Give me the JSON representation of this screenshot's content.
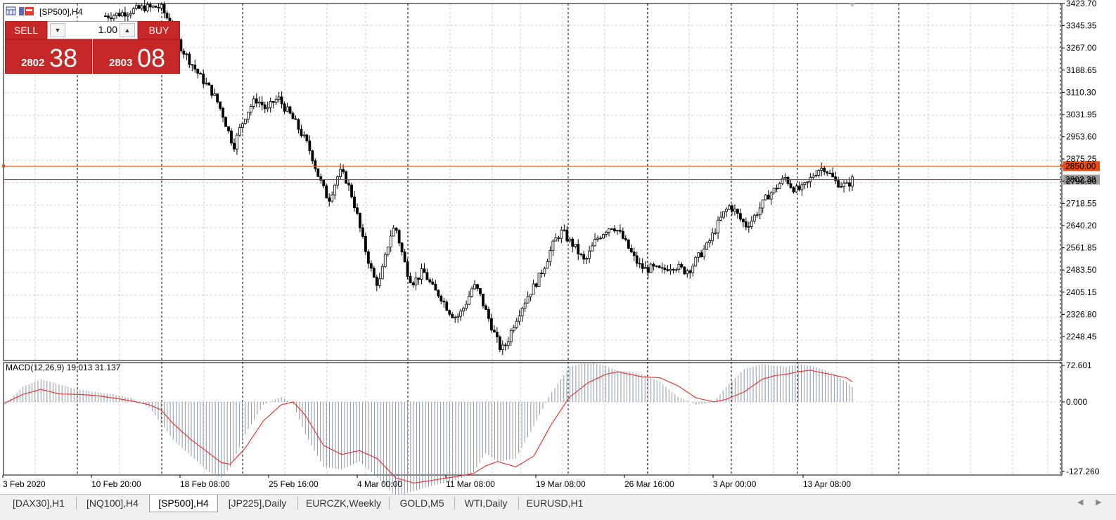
{
  "chart_header": {
    "symbol_label": "[SP500],H4"
  },
  "trade_panel": {
    "sell_label": "SELL",
    "buy_label": "BUY",
    "volume": "1.00",
    "bid_small": "2802",
    "bid_big": "38",
    "ask_small": "2803",
    "ask_big": "08",
    "color": "#c62828"
  },
  "price_axis": {
    "ticks": [
      "3423.70",
      "3345.35",
      "3267.00",
      "3188.65",
      "3110.30",
      "3031.95",
      "2953.60",
      "2875.25",
      "2796.90",
      "2718.55",
      "2640.20",
      "2561.85",
      "2483.50",
      "2405.15",
      "2326.80",
      "2248.45"
    ],
    "tick_values": [
      3423.7,
      3345.35,
      3267.0,
      3188.65,
      3110.3,
      3031.95,
      2953.6,
      2875.25,
      2796.9,
      2718.55,
      2640.2,
      2561.85,
      2483.5,
      2405.15,
      2326.8,
      2248.45
    ],
    "level_line": {
      "value": 2850.0,
      "label": "2850.00",
      "color": "#e64a19"
    },
    "current_price": {
      "value": 2802.38,
      "label": "2802.38",
      "color": "#9e9e9e"
    }
  },
  "indicator": {
    "label": "MACD(12,26,9) 19.013 31.137",
    "axis_ticks": [
      "72.601",
      "0.000",
      "-127.260"
    ],
    "axis_values": [
      72.601,
      0.0,
      -127.26
    ],
    "signal_color": "#e53935",
    "histogram_color": "#8a94a6"
  },
  "time_axis": {
    "labels": [
      "3 Feb 2020",
      "10 Feb 20:00",
      "18 Feb 08:00",
      "25 Feb 16:00",
      "4 Mar 00:00",
      "11 Mar 08:00",
      "19 Mar 08:00",
      "26 Mar 16:00",
      "3 Apr 00:00",
      "13 Apr 08:00"
    ]
  },
  "tabs": [
    {
      "label": "[DAX30],H1",
      "active": false
    },
    {
      "label": "[NQ100],H4",
      "active": false
    },
    {
      "label": "[SP500],H4",
      "active": true
    },
    {
      "label": "[JP225],Daily",
      "active": false
    },
    {
      "label": "EURCZK,Weekly",
      "active": false
    },
    {
      "label": "GOLD,M5",
      "active": false
    },
    {
      "label": "WTI,Daily",
      "active": false
    },
    {
      "label": "EURUSD,H1",
      "active": false
    }
  ],
  "chart_data": {
    "type": "candlestick",
    "title": "[SP500],H4",
    "ylim": [
      2200.0,
      3423.7
    ],
    "close_path": [
      [
        0,
        3380
      ],
      [
        2,
        3385
      ],
      [
        3,
        3390
      ],
      [
        4,
        3395
      ],
      [
        5,
        3400
      ],
      [
        6,
        3405
      ],
      [
        7,
        3410
      ],
      [
        8,
        3408
      ],
      [
        9,
        3412
      ],
      [
        10,
        3408
      ],
      [
        11,
        3375
      ],
      [
        12,
        3340
      ],
      [
        13,
        3290
      ],
      [
        14,
        3255
      ],
      [
        15,
        3225
      ],
      [
        16,
        3195
      ],
      [
        17,
        3165
      ],
      [
        18,
        3140
      ],
      [
        19,
        3115
      ],
      [
        20,
        3080
      ],
      [
        21,
        3035
      ],
      [
        22,
        2975
      ],
      [
        23,
        2920
      ],
      [
        24,
        2975
      ],
      [
        25,
        3025
      ],
      [
        26,
        3060
      ],
      [
        27,
        3085
      ],
      [
        28,
        3070
      ],
      [
        29,
        3045
      ],
      [
        30,
        3075
      ],
      [
        31,
        3090
      ],
      [
        32,
        3060
      ],
      [
        33,
        3035
      ],
      [
        34,
        3005
      ],
      [
        35,
        2970
      ],
      [
        36,
        2935
      ],
      [
        37,
        2890
      ],
      [
        38,
        2825
      ],
      [
        39,
        2775
      ],
      [
        40,
        2730
      ],
      [
        41,
        2780
      ],
      [
        42,
        2830
      ],
      [
        43,
        2810
      ],
      [
        44,
        2760
      ],
      [
        45,
        2690
      ],
      [
        46,
        2600
      ],
      [
        47,
        2530
      ],
      [
        48,
        2460
      ],
      [
        49,
        2430
      ],
      [
        50,
        2510
      ],
      [
        51,
        2600
      ],
      [
        52,
        2640
      ],
      [
        53,
        2560
      ],
      [
        54,
        2485
      ],
      [
        55,
        2440
      ],
      [
        56,
        2455
      ],
      [
        57,
        2480
      ],
      [
        58,
        2445
      ],
      [
        59,
        2410
      ],
      [
        60,
        2395
      ],
      [
        61,
        2360
      ],
      [
        62,
        2330
      ],
      [
        63,
        2315
      ],
      [
        64,
        2340
      ],
      [
        65,
        2380
      ],
      [
        66,
        2430
      ],
      [
        67,
        2405
      ],
      [
        68,
        2350
      ],
      [
        69,
        2300
      ],
      [
        70,
        2245
      ],
      [
        71,
        2200
      ],
      [
        72,
        2225
      ],
      [
        73,
        2280
      ],
      [
        74,
        2325
      ],
      [
        75,
        2365
      ],
      [
        76,
        2400
      ],
      [
        77,
        2430
      ],
      [
        78,
        2465
      ],
      [
        79,
        2510
      ],
      [
        80,
        2560
      ],
      [
        81,
        2600
      ],
      [
        82,
        2620
      ],
      [
        83,
        2590
      ],
      [
        84,
        2570
      ],
      [
        85,
        2540
      ],
      [
        86,
        2510
      ],
      [
        87,
        2550
      ],
      [
        88,
        2590
      ],
      [
        89,
        2610
      ],
      [
        90,
        2630
      ],
      [
        91,
        2640
      ],
      [
        92,
        2620
      ],
      [
        93,
        2590
      ],
      [
        94,
        2555
      ],
      [
        95,
        2520
      ],
      [
        96,
        2495
      ],
      [
        97,
        2485
      ],
      [
        98,
        2490
      ],
      [
        99,
        2485
      ],
      [
        100,
        2480
      ],
      [
        101,
        2495
      ],
      [
        102,
        2500
      ],
      [
        103,
        2490
      ],
      [
        104,
        2480
      ],
      [
        105,
        2490
      ],
      [
        106,
        2520
      ],
      [
        107,
        2545
      ],
      [
        108,
        2570
      ],
      [
        109,
        2610
      ],
      [
        110,
        2650
      ],
      [
        111,
        2685
      ],
      [
        112,
        2710
      ],
      [
        113,
        2690
      ],
      [
        114,
        2660
      ],
      [
        115,
        2640
      ],
      [
        116,
        2660
      ],
      [
        117,
        2690
      ],
      [
        118,
        2720
      ],
      [
        119,
        2750
      ],
      [
        120,
        2765
      ],
      [
        121,
        2790
      ],
      [
        122,
        2810
      ],
      [
        123,
        2780
      ],
      [
        124,
        2765
      ],
      [
        125,
        2770
      ],
      [
        126,
        2790
      ],
      [
        127,
        2820
      ],
      [
        128,
        2840
      ],
      [
        129,
        2845
      ],
      [
        130,
        2820
      ],
      [
        131,
        2795
      ],
      [
        132,
        2785
      ],
      [
        133,
        2780
      ],
      [
        134,
        2802
      ]
    ],
    "macd_signal_path": [
      [
        0,
        -2
      ],
      [
        6,
        15
      ],
      [
        12,
        25
      ],
      [
        18,
        16
      ],
      [
        24,
        15
      ],
      [
        30,
        13
      ],
      [
        36,
        8
      ],
      [
        42,
        2
      ],
      [
        48,
        -5
      ],
      [
        52,
        -15
      ],
      [
        56,
        -40
      ],
      [
        62,
        -70
      ],
      [
        68,
        -95
      ],
      [
        72,
        -112
      ],
      [
        75,
        -115
      ],
      [
        80,
        -85
      ],
      [
        86,
        -35
      ],
      [
        92,
        -5
      ],
      [
        96,
        0
      ],
      [
        100,
        -25
      ],
      [
        106,
        -80
      ],
      [
        112,
        -97
      ],
      [
        118,
        -90
      ],
      [
        124,
        -105
      ],
      [
        130,
        -140
      ],
      [
        136,
        -150
      ],
      [
        142,
        -145
      ],
      [
        150,
        -138
      ],
      [
        156,
        -132
      ],
      [
        160,
        -118
      ],
      [
        164,
        -110
      ],
      [
        170,
        -120
      ],
      [
        176,
        -100
      ],
      [
        182,
        -40
      ],
      [
        188,
        10
      ],
      [
        194,
        38
      ],
      [
        200,
        55
      ],
      [
        204,
        60
      ],
      [
        208,
        55
      ],
      [
        212,
        50
      ],
      [
        218,
        48
      ],
      [
        224,
        32
      ],
      [
        230,
        8
      ],
      [
        236,
        0
      ],
      [
        240,
        5
      ],
      [
        246,
        20
      ],
      [
        252,
        45
      ],
      [
        256,
        52
      ],
      [
        260,
        55
      ],
      [
        264,
        60
      ],
      [
        268,
        63
      ],
      [
        272,
        58
      ],
      [
        276,
        53
      ],
      [
        280,
        48
      ],
      [
        282,
        40
      ]
    ],
    "macd_hist_path": [
      [
        0,
        -5
      ],
      [
        6,
        30
      ],
      [
        12,
        45
      ],
      [
        18,
        35
      ],
      [
        24,
        25
      ],
      [
        30,
        20
      ],
      [
        36,
        15
      ],
      [
        42,
        8
      ],
      [
        48,
        -10
      ],
      [
        52,
        -40
      ],
      [
        56,
        -70
      ],
      [
        62,
        -100
      ],
      [
        68,
        -130
      ],
      [
        72,
        -140
      ],
      [
        75,
        -120
      ],
      [
        80,
        -60
      ],
      [
        86,
        -5
      ],
      [
        92,
        10
      ],
      [
        96,
        -5
      ],
      [
        100,
        -60
      ],
      [
        106,
        -120
      ],
      [
        112,
        -125
      ],
      [
        118,
        -110
      ],
      [
        124,
        -140
      ],
      [
        130,
        -175
      ],
      [
        136,
        -165
      ],
      [
        142,
        -155
      ],
      [
        150,
        -145
      ],
      [
        156,
        -130
      ],
      [
        160,
        -95
      ],
      [
        164,
        -110
      ],
      [
        170,
        -105
      ],
      [
        176,
        -45
      ],
      [
        182,
        20
      ],
      [
        188,
        70
      ],
      [
        194,
        80
      ],
      [
        200,
        72
      ],
      [
        204,
        62
      ],
      [
        208,
        60
      ],
      [
        212,
        55
      ],
      [
        218,
        40
      ],
      [
        224,
        10
      ],
      [
        230,
        -5
      ],
      [
        236,
        0
      ],
      [
        240,
        30
      ],
      [
        246,
        65
      ],
      [
        252,
        75
      ],
      [
        256,
        72
      ],
      [
        260,
        70
      ],
      [
        264,
        75
      ],
      [
        268,
        72
      ],
      [
        272,
        65
      ],
      [
        276,
        55
      ],
      [
        280,
        40
      ],
      [
        282,
        30
      ]
    ]
  }
}
